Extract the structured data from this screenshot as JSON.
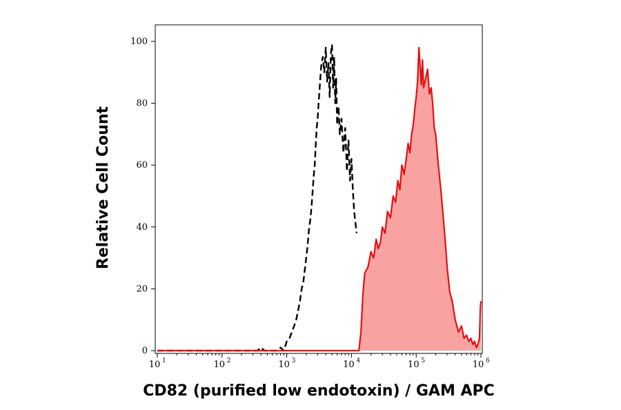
{
  "chart_data": {
    "type": "area",
    "title": "",
    "xlabel": "CD82 (purified low endotoxin) / GAM APC",
    "ylabel": "Relative Cell Count",
    "xscale": "log",
    "xlim": [
      10,
      1000000
    ],
    "ylim": [
      0,
      100
    ],
    "grid": false,
    "legend": "none",
    "x_ticks": [
      {
        "base": "10",
        "exp": "1",
        "value": 10
      },
      {
        "base": "10",
        "exp": "2",
        "value": 100
      },
      {
        "base": "10",
        "exp": "3",
        "value": 1000
      },
      {
        "base": "10",
        "exp": "4",
        "value": 10000
      },
      {
        "base": "10",
        "exp": "5",
        "value": 100000
      },
      {
        "base": "10",
        "exp": "6",
        "value": 1000000
      }
    ],
    "y_ticks": [
      "0",
      "20",
      "40",
      "60",
      "80",
      "100"
    ],
    "series": [
      {
        "style": "dashed-line",
        "color": "#000000",
        "x": [
          10,
          100,
          350,
          400,
          450,
          700,
          800,
          900,
          1000,
          1100,
          1200,
          1300,
          1400,
          1500,
          1600,
          1700,
          1800,
          1900,
          2000,
          2100,
          2200,
          2300,
          2400,
          2500,
          2600,
          2700,
          2800,
          2900,
          3000,
          3100,
          3200,
          3300,
          3400,
          3600,
          3800,
          4000,
          4200,
          4400,
          4600,
          4800,
          5000,
          5200,
          5400,
          5600,
          5800,
          6000,
          6300,
          6600,
          7000,
          7500,
          8000,
          8500,
          9000,
          9500,
          10000,
          10500,
          11000,
          12000
        ],
        "y": [
          0,
          0,
          0,
          1,
          0,
          0,
          1,
          0,
          3,
          4,
          6,
          8,
          10,
          13,
          16,
          20,
          22,
          26,
          30,
          34,
          39,
          42,
          46,
          51,
          56,
          60,
          66,
          72,
          75,
          80,
          84,
          88,
          92,
          95,
          90,
          98,
          87,
          93,
          82,
          96,
          99,
          85,
          95,
          80,
          88,
          73,
          79,
          70,
          75,
          64,
          72,
          58,
          68,
          55,
          62,
          52,
          45,
          38
        ]
      },
      {
        "style": "filled-area",
        "color": "#e31010",
        "fill": "#f9a2a2",
        "x": [
          10,
          10000,
          13000,
          14000,
          15000,
          16000,
          18000,
          20000,
          22000,
          24000,
          26000,
          28000,
          30000,
          33000,
          36000,
          40000,
          44000,
          48000,
          52000,
          56000,
          60000,
          65000,
          70000,
          75000,
          80000,
          85000,
          90000,
          95000,
          100000,
          105000,
          110000,
          115000,
          120000,
          125000,
          130000,
          140000,
          150000,
          160000,
          170000,
          180000,
          190000,
          200000,
          220000,
          240000,
          260000,
          280000,
          300000,
          330000,
          360000,
          400000,
          450000,
          500000,
          550000,
          600000,
          650000,
          700000,
          750000,
          800000,
          850000,
          900000,
          950000,
          980000,
          1000000
        ],
        "y": [
          0,
          0,
          0,
          6,
          18,
          25,
          27,
          32,
          30,
          36,
          33,
          35,
          40,
          38,
          45,
          43,
          50,
          48,
          55,
          52,
          60,
          57,
          62,
          67,
          64,
          70,
          73,
          78,
          82,
          87,
          98,
          92,
          86,
          94,
          85,
          88,
          91,
          83,
          85,
          80,
          72,
          70,
          60,
          52,
          44,
          36,
          27,
          19,
          16,
          10,
          6,
          8,
          4,
          5,
          3,
          4,
          2,
          3,
          1,
          2,
          4,
          14,
          16
        ]
      }
    ]
  }
}
